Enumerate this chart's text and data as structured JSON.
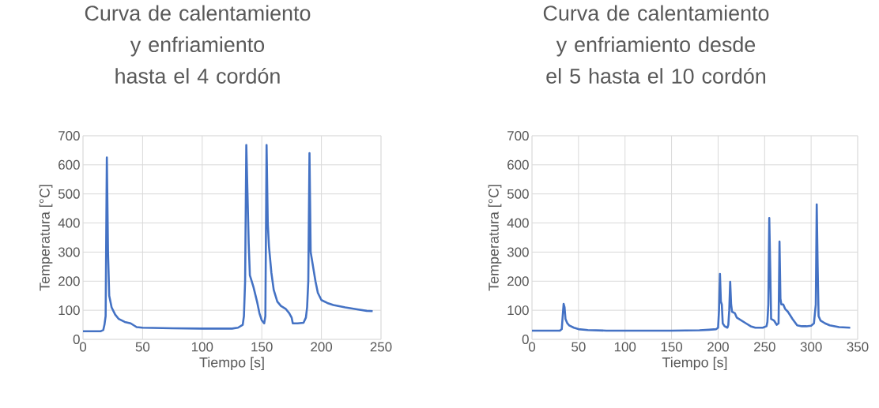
{
  "chart_data": [
    {
      "type": "line",
      "title": "Curva de calentamiento y enfriamiento hasta el 4 cordón",
      "xlabel": "Tiempo [s]",
      "ylabel": "Temperatura [°C]",
      "xlim": [
        0,
        250
      ],
      "ylim": [
        0,
        700
      ],
      "xticks": [
        0,
        50,
        100,
        150,
        200,
        250
      ],
      "yticks": [
        0,
        100,
        200,
        300,
        400,
        500,
        600,
        700
      ],
      "grid": true,
      "marker": "none",
      "line_style": "solid",
      "series": [
        {
          "color": "#4472c4",
          "x": [
            0,
            15,
            17,
            18,
            19,
            20,
            21,
            22,
            24,
            27,
            30,
            35,
            40,
            45,
            50,
            75,
            100,
            125,
            130,
            134,
            135,
            136,
            137,
            138,
            139,
            140,
            143,
            146,
            148,
            150,
            152,
            153,
            154,
            155,
            156,
            158,
            160,
            163,
            166,
            170,
            173,
            175,
            176,
            180,
            185,
            187,
            188,
            189,
            190,
            191,
            193,
            195,
            197,
            200,
            205,
            210,
            220,
            230,
            238,
            243
          ],
          "values": [
            28,
            28,
            32,
            50,
            80,
            625,
            300,
            150,
            110,
            85,
            70,
            60,
            55,
            42,
            40,
            38,
            37,
            37,
            40,
            50,
            80,
            200,
            668,
            500,
            330,
            220,
            180,
            130,
            90,
            65,
            55,
            80,
            668,
            400,
            320,
            230,
            170,
            130,
            115,
            105,
            90,
            75,
            55,
            55,
            57,
            75,
            110,
            200,
            640,
            300,
            250,
            200,
            160,
            135,
            125,
            118,
            110,
            103,
            98,
            97
          ]
        }
      ]
    },
    {
      "type": "line",
      "title": "Curva de calentamiento y enfriamiento desde el 5 hasta el 10 cordón",
      "xlabel": "Tiempo [s]",
      "ylabel": "Temperatura [°C]",
      "xlim": [
        0,
        350
      ],
      "ylim": [
        0,
        700
      ],
      "xticks": [
        0,
        50,
        100,
        150,
        200,
        250,
        300,
        350
      ],
      "yticks": [
        0,
        100,
        200,
        300,
        400,
        500,
        600,
        700
      ],
      "grid": true,
      "marker": "none",
      "line_style": "solid",
      "series": [
        {
          "color": "#4472c4",
          "x": [
            0,
            30,
            32,
            33,
            34,
            35,
            36,
            38,
            40,
            45,
            50,
            60,
            80,
            100,
            150,
            180,
            190,
            198,
            200,
            201,
            202,
            203,
            204,
            205,
            207,
            210,
            211,
            212,
            213,
            214,
            215,
            218,
            220,
            225,
            230,
            235,
            240,
            248,
            252,
            253,
            254,
            255,
            256,
            257,
            260,
            263,
            265,
            266,
            267,
            268,
            270,
            272,
            275,
            278,
            280,
            285,
            290,
            295,
            300,
            303,
            305,
            306,
            307,
            308,
            310,
            315,
            320,
            330,
            342
          ],
          "values": [
            30,
            30,
            35,
            80,
            122,
            110,
            70,
            55,
            48,
            40,
            35,
            32,
            30,
            30,
            30,
            31,
            33,
            35,
            40,
            100,
            225,
            130,
            120,
            55,
            45,
            40,
            50,
            100,
            198,
            120,
            95,
            90,
            75,
            65,
            55,
            45,
            40,
            40,
            45,
            60,
            120,
            417,
            250,
            70,
            65,
            50,
            55,
            336,
            140,
            120,
            120,
            105,
            95,
            80,
            70,
            48,
            45,
            45,
            47,
            55,
            120,
            464,
            250,
            80,
            65,
            55,
            48,
            42,
            40
          ]
        }
      ]
    }
  ]
}
